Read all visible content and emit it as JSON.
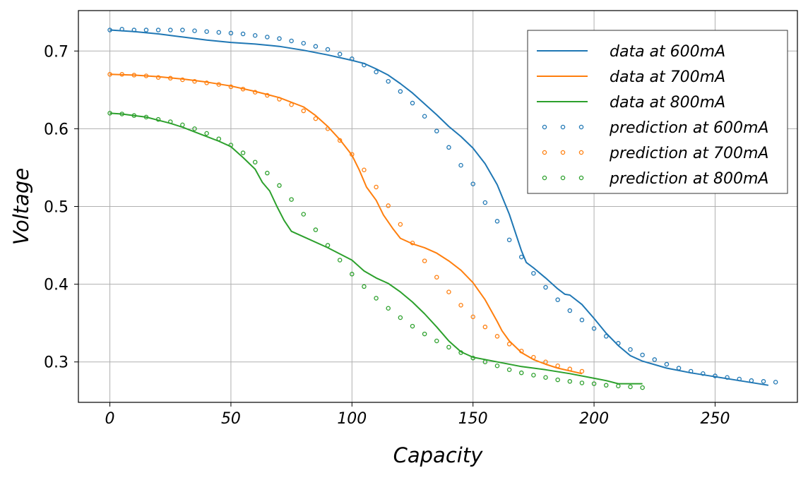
{
  "chart_data": {
    "type": "line",
    "title": "",
    "xlabel": "Capacity",
    "ylabel": "Voltage",
    "xlim": [
      -13,
      284
    ],
    "ylim": [
      0.248,
      0.752
    ],
    "x_ticks": [
      0,
      50,
      100,
      150,
      200,
      250
    ],
    "x_tick_labels": [
      "0",
      "50",
      "100",
      "150",
      "200",
      "250"
    ],
    "y_ticks": [
      0.3,
      0.4,
      0.5,
      0.6,
      0.7
    ],
    "y_tick_labels": [
      "0.3",
      "0.4",
      "0.5",
      "0.6",
      "0.7"
    ],
    "grid": true,
    "legend_position": "upper-right",
    "series": [
      {
        "name": "data at 600mA",
        "style": "line",
        "color": "#1f77b4",
        "points": [
          [
            0,
            0.727
          ],
          [
            10,
            0.725
          ],
          [
            20,
            0.722
          ],
          [
            30,
            0.718
          ],
          [
            40,
            0.714
          ],
          [
            50,
            0.711
          ],
          [
            60,
            0.709
          ],
          [
            70,
            0.706
          ],
          [
            80,
            0.701
          ],
          [
            90,
            0.695
          ],
          [
            100,
            0.688
          ],
          [
            105,
            0.684
          ],
          [
            110,
            0.677
          ],
          [
            115,
            0.669
          ],
          [
            120,
            0.658
          ],
          [
            125,
            0.646
          ],
          [
            130,
            0.632
          ],
          [
            135,
            0.618
          ],
          [
            140,
            0.603
          ],
          [
            145,
            0.59
          ],
          [
            150,
            0.575
          ],
          [
            155,
            0.555
          ],
          [
            160,
            0.528
          ],
          [
            165,
            0.49
          ],
          [
            170,
            0.443
          ],
          [
            172,
            0.428
          ],
          [
            175,
            0.421
          ],
          [
            180,
            0.408
          ],
          [
            185,
            0.394
          ],
          [
            188,
            0.387
          ],
          [
            190,
            0.386
          ],
          [
            195,
            0.374
          ],
          [
            200,
            0.356
          ],
          [
            205,
            0.337
          ],
          [
            210,
            0.321
          ],
          [
            215,
            0.308
          ],
          [
            220,
            0.301
          ],
          [
            230,
            0.292
          ],
          [
            240,
            0.286
          ],
          [
            250,
            0.281
          ],
          [
            260,
            0.276
          ],
          [
            272,
            0.27
          ]
        ]
      },
      {
        "name": "data at 700mA",
        "style": "line",
        "color": "#ff7f0e",
        "points": [
          [
            0,
            0.67
          ],
          [
            10,
            0.669
          ],
          [
            20,
            0.667
          ],
          [
            30,
            0.664
          ],
          [
            40,
            0.66
          ],
          [
            50,
            0.655
          ],
          [
            60,
            0.648
          ],
          [
            70,
            0.64
          ],
          [
            80,
            0.628
          ],
          [
            85,
            0.617
          ],
          [
            90,
            0.603
          ],
          [
            95,
            0.586
          ],
          [
            100,
            0.566
          ],
          [
            103,
            0.547
          ],
          [
            106,
            0.525
          ],
          [
            110,
            0.508
          ],
          [
            113,
            0.489
          ],
          [
            117,
            0.471
          ],
          [
            120,
            0.459
          ],
          [
            125,
            0.452
          ],
          [
            130,
            0.447
          ],
          [
            135,
            0.44
          ],
          [
            140,
            0.43
          ],
          [
            145,
            0.418
          ],
          [
            150,
            0.402
          ],
          [
            155,
            0.38
          ],
          [
            160,
            0.352
          ],
          [
            162,
            0.34
          ],
          [
            165,
            0.327
          ],
          [
            170,
            0.312
          ],
          [
            175,
            0.303
          ],
          [
            180,
            0.297
          ],
          [
            185,
            0.292
          ],
          [
            195,
            0.285
          ]
        ]
      },
      {
        "name": "data at 800mA",
        "style": "line",
        "color": "#2ca02c",
        "points": [
          [
            0,
            0.62
          ],
          [
            5,
            0.619
          ],
          [
            10,
            0.617
          ],
          [
            15,
            0.615
          ],
          [
            20,
            0.611
          ],
          [
            25,
            0.607
          ],
          [
            30,
            0.602
          ],
          [
            35,
            0.596
          ],
          [
            40,
            0.59
          ],
          [
            45,
            0.584
          ],
          [
            50,
            0.577
          ],
          [
            55,
            0.563
          ],
          [
            60,
            0.548
          ],
          [
            63,
            0.531
          ],
          [
            66,
            0.52
          ],
          [
            69,
            0.5
          ],
          [
            72,
            0.482
          ],
          [
            75,
            0.468
          ],
          [
            80,
            0.461
          ],
          [
            90,
            0.447
          ],
          [
            100,
            0.431
          ],
          [
            105,
            0.417
          ],
          [
            110,
            0.408
          ],
          [
            115,
            0.401
          ],
          [
            120,
            0.39
          ],
          [
            125,
            0.377
          ],
          [
            130,
            0.362
          ],
          [
            135,
            0.345
          ],
          [
            140,
            0.327
          ],
          [
            145,
            0.313
          ],
          [
            150,
            0.306
          ],
          [
            160,
            0.3
          ],
          [
            170,
            0.294
          ],
          [
            180,
            0.29
          ],
          [
            190,
            0.285
          ],
          [
            200,
            0.279
          ],
          [
            205,
            0.276
          ],
          [
            210,
            0.272
          ],
          [
            220,
            0.272
          ]
        ]
      },
      {
        "name": "prediction at 600mA",
        "style": "markers",
        "color": "#1f77b4",
        "points": [
          [
            0,
            0.727
          ],
          [
            5,
            0.728
          ],
          [
            10,
            0.727
          ],
          [
            15,
            0.727
          ],
          [
            20,
            0.727
          ],
          [
            25,
            0.727
          ],
          [
            30,
            0.727
          ],
          [
            35,
            0.726
          ],
          [
            40,
            0.725
          ],
          [
            45,
            0.724
          ],
          [
            50,
            0.723
          ],
          [
            55,
            0.722
          ],
          [
            60,
            0.72
          ],
          [
            65,
            0.718
          ],
          [
            70,
            0.716
          ],
          [
            75,
            0.713
          ],
          [
            80,
            0.71
          ],
          [
            85,
            0.706
          ],
          [
            90,
            0.702
          ],
          [
            95,
            0.696
          ],
          [
            100,
            0.69
          ],
          [
            105,
            0.682
          ],
          [
            110,
            0.673
          ],
          [
            115,
            0.661
          ],
          [
            120,
            0.648
          ],
          [
            125,
            0.633
          ],
          [
            130,
            0.616
          ],
          [
            135,
            0.597
          ],
          [
            140,
            0.576
          ],
          [
            145,
            0.553
          ],
          [
            150,
            0.529
          ],
          [
            155,
            0.505
          ],
          [
            160,
            0.481
          ],
          [
            165,
            0.457
          ],
          [
            170,
            0.435
          ],
          [
            175,
            0.414
          ],
          [
            180,
            0.396
          ],
          [
            185,
            0.38
          ],
          [
            190,
            0.366
          ],
          [
            195,
            0.354
          ],
          [
            200,
            0.343
          ],
          [
            205,
            0.333
          ],
          [
            210,
            0.324
          ],
          [
            215,
            0.316
          ],
          [
            220,
            0.309
          ],
          [
            225,
            0.303
          ],
          [
            230,
            0.297
          ],
          [
            235,
            0.292
          ],
          [
            240,
            0.288
          ],
          [
            245,
            0.285
          ],
          [
            250,
            0.282
          ],
          [
            255,
            0.28
          ],
          [
            260,
            0.278
          ],
          [
            265,
            0.276
          ],
          [
            270,
            0.275
          ],
          [
            275,
            0.274
          ]
        ]
      },
      {
        "name": "prediction at 700mA",
        "style": "markers",
        "color": "#ff7f0e",
        "points": [
          [
            0,
            0.67
          ],
          [
            5,
            0.67
          ],
          [
            10,
            0.669
          ],
          [
            15,
            0.668
          ],
          [
            20,
            0.666
          ],
          [
            25,
            0.665
          ],
          [
            30,
            0.663
          ],
          [
            35,
            0.661
          ],
          [
            40,
            0.659
          ],
          [
            45,
            0.657
          ],
          [
            50,
            0.654
          ],
          [
            55,
            0.651
          ],
          [
            60,
            0.647
          ],
          [
            65,
            0.643
          ],
          [
            70,
            0.638
          ],
          [
            75,
            0.631
          ],
          [
            80,
            0.623
          ],
          [
            85,
            0.613
          ],
          [
            90,
            0.6
          ],
          [
            95,
            0.585
          ],
          [
            100,
            0.567
          ],
          [
            105,
            0.547
          ],
          [
            110,
            0.525
          ],
          [
            115,
            0.501
          ],
          [
            120,
            0.477
          ],
          [
            125,
            0.453
          ],
          [
            130,
            0.43
          ],
          [
            135,
            0.409
          ],
          [
            140,
            0.39
          ],
          [
            145,
            0.373
          ],
          [
            150,
            0.358
          ],
          [
            155,
            0.345
          ],
          [
            160,
            0.333
          ],
          [
            165,
            0.323
          ],
          [
            170,
            0.314
          ],
          [
            175,
            0.306
          ],
          [
            180,
            0.3
          ],
          [
            185,
            0.295
          ],
          [
            190,
            0.291
          ],
          [
            195,
            0.288
          ]
        ]
      },
      {
        "name": "prediction at 800mA",
        "style": "markers",
        "color": "#2ca02c",
        "points": [
          [
            0,
            0.62
          ],
          [
            5,
            0.619
          ],
          [
            10,
            0.617
          ],
          [
            15,
            0.615
          ],
          [
            20,
            0.612
          ],
          [
            25,
            0.609
          ],
          [
            30,
            0.605
          ],
          [
            35,
            0.6
          ],
          [
            40,
            0.594
          ],
          [
            45,
            0.587
          ],
          [
            50,
            0.579
          ],
          [
            55,
            0.569
          ],
          [
            60,
            0.557
          ],
          [
            65,
            0.543
          ],
          [
            70,
            0.527
          ],
          [
            75,
            0.509
          ],
          [
            80,
            0.49
          ],
          [
            85,
            0.47
          ],
          [
            90,
            0.45
          ],
          [
            95,
            0.431
          ],
          [
            100,
            0.413
          ],
          [
            105,
            0.397
          ],
          [
            110,
            0.382
          ],
          [
            115,
            0.369
          ],
          [
            120,
            0.357
          ],
          [
            125,
            0.346
          ],
          [
            130,
            0.336
          ],
          [
            135,
            0.327
          ],
          [
            140,
            0.319
          ],
          [
            145,
            0.312
          ],
          [
            150,
            0.305
          ],
          [
            155,
            0.3
          ],
          [
            160,
            0.295
          ],
          [
            165,
            0.29
          ],
          [
            170,
            0.286
          ],
          [
            175,
            0.283
          ],
          [
            180,
            0.28
          ],
          [
            185,
            0.277
          ],
          [
            190,
            0.275
          ],
          [
            195,
            0.273
          ],
          [
            200,
            0.272
          ],
          [
            205,
            0.27
          ],
          [
            210,
            0.269
          ],
          [
            215,
            0.268
          ],
          [
            220,
            0.267
          ]
        ]
      }
    ]
  }
}
